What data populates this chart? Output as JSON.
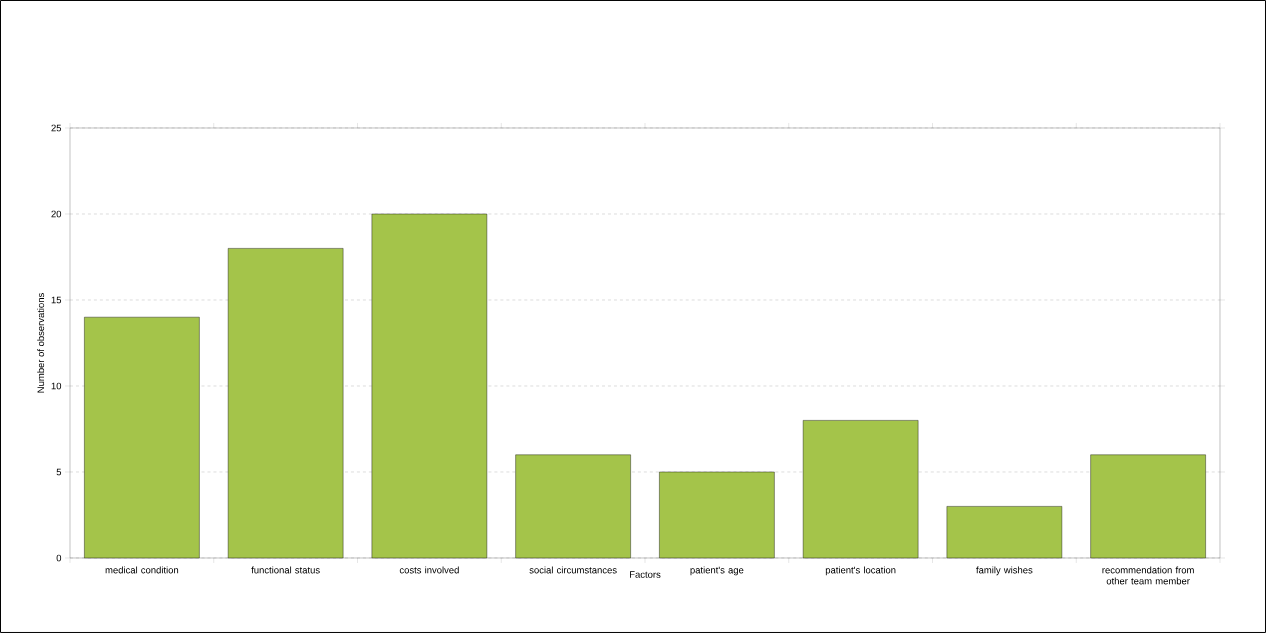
{
  "chart_data": {
    "type": "bar",
    "xlabel": "Factors",
    "ylabel": "Number of observations",
    "categories": [
      "medical condition",
      "functional status",
      "costs involved",
      "social circumstances",
      "patient's age",
      "patient's location",
      "family wishes",
      "recommendation from other team member"
    ],
    "values": [
      14,
      18,
      20,
      6,
      5,
      8,
      3,
      6
    ],
    "color": "#a4c44a",
    "ylim": [
      0,
      25
    ],
    "yticks": [
      0,
      5,
      10,
      15,
      20,
      25
    ],
    "grid": "y"
  }
}
